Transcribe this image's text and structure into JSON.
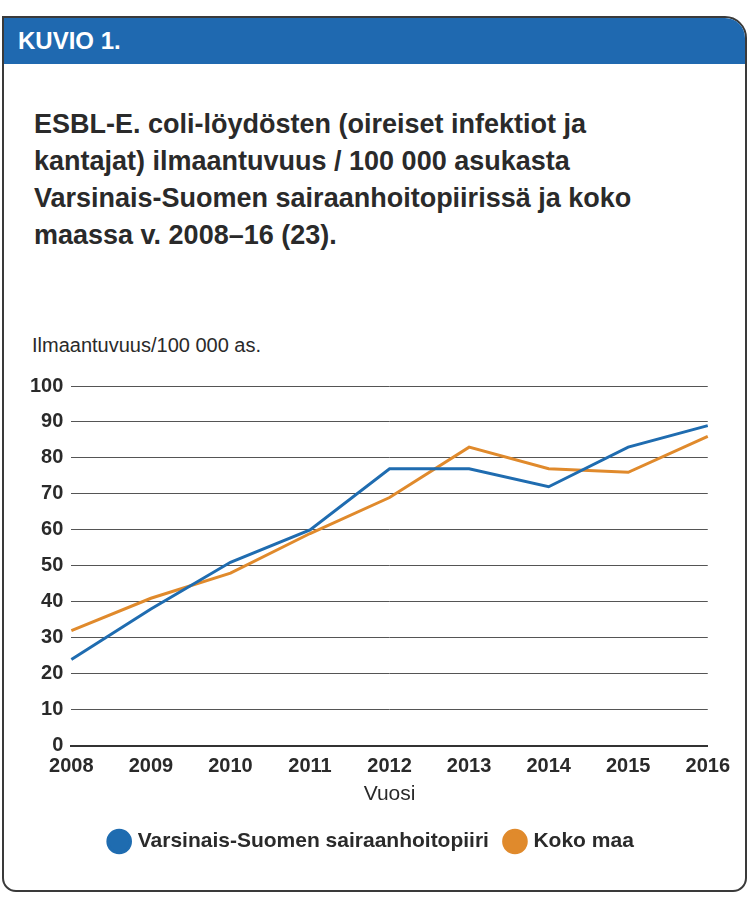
{
  "header": {
    "label": "KUVIO 1."
  },
  "chart_data": {
    "type": "line",
    "title": "ESBL-E. coli-löydösten (oireiset infektiot ja kantajat) ilmaantuvuus / 100 000 asukasta Varsinais-Suomen sairaanhoitopiirissä ja koko maassa v. 2008–16 (23).",
    "y_label": "Ilmaantuvuus/100 000 as.",
    "x_label": "Vuosi",
    "categories": [
      "2008",
      "2009",
      "2010",
      "2011",
      "2012",
      "2013",
      "2014",
      "2015",
      "2016"
    ],
    "series": [
      {
        "name": "Varsinais-Suomen sairaanhoitopiiri",
        "color": "#1f6cb0",
        "line_style": "solid",
        "values": [
          24,
          38,
          51,
          60,
          77,
          77,
          72,
          83,
          89
        ]
      },
      {
        "name": "Koko maa",
        "color": "#e08a2c",
        "line_style": "solid",
        "values": [
          32,
          41,
          48,
          59,
          69,
          83,
          77,
          76,
          86
        ]
      }
    ],
    "ylim": [
      0,
      100
    ],
    "yticks": [
      0,
      10,
      20,
      30,
      40,
      50,
      60,
      70,
      80,
      90,
      100
    ],
    "grid": true,
    "legend": "bottom"
  }
}
